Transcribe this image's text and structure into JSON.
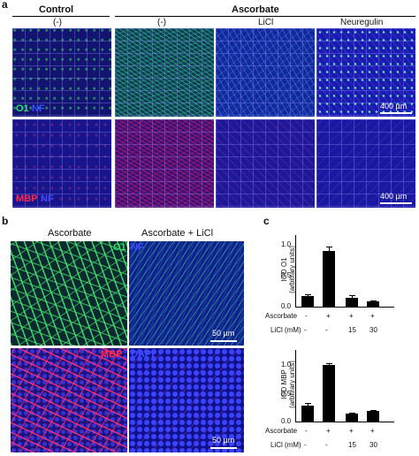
{
  "panel_a": {
    "letter": "a",
    "group_control": "Control",
    "group_ascorbate": "Ascorbate",
    "col_labels": [
      "(-)",
      "(-)",
      "LiCl",
      "Neuregulin"
    ],
    "row1_stain_a": "O1",
    "row1_stain_b": "NF",
    "row2_stain_a": "MBP",
    "row2_stain_b": "NF",
    "scale_row1": "400 µm",
    "scale_row2": "400 µm"
  },
  "panel_b": {
    "letter": "b",
    "col_left": "Ascorbate",
    "col_right": "Ascorbate + LiCl",
    "row1_stain_a": "O1",
    "row1_stain_b": "NF",
    "row2_stain_a": "MBP",
    "row2_stain_b": "DAPI",
    "scale_row1": "50 µm",
    "scale_row2": "50 µm"
  },
  "panel_c": {
    "letter": "c",
    "chart_data": [
      {
        "type": "bar",
        "ylabel": "IOD O1 (arbitrary units)",
        "ylabel_line1": "IOD O1",
        "ylabel_line2": "(arbitrary units)",
        "yticks": [
          "1.0",
          "0.5",
          "0.0"
        ],
        "ylim": [
          0,
          1.3
        ],
        "values": [
          0.17,
          0.9,
          0.14,
          0.08
        ],
        "errors": [
          0.03,
          0.07,
          0.04,
          0.02
        ],
        "row_labels": [
          "Ascorbate",
          "LiCl (mM)"
        ],
        "ascorbate": [
          "-",
          "+",
          "+",
          "+"
        ],
        "licl": [
          "-",
          "-",
          "15",
          "30"
        ]
      },
      {
        "type": "bar",
        "ylabel": "IOD MBP (arbitrary units)",
        "ylabel_line1": "IOD MBP",
        "ylabel_line2": "(arbitrary units)",
        "yticks": [
          "1.0",
          "0.5",
          "0.0"
        ],
        "ylim": [
          0,
          1.15
        ],
        "values": [
          0.28,
          1.0,
          0.14,
          0.19
        ],
        "errors": [
          0.05,
          0.03,
          0.01,
          0.02
        ],
        "row_labels": [
          "Ascorbate",
          "LiCl (mM)"
        ],
        "ascorbate": [
          "-",
          "+",
          "+",
          "+"
        ],
        "licl": [
          "-",
          "-",
          "15",
          "30"
        ]
      }
    ]
  },
  "colors": {
    "green": "#2fe06a",
    "blue_label": "#3a4cff",
    "red": "#ff2a4a",
    "nuclei_blue": "#1e2ad0"
  }
}
